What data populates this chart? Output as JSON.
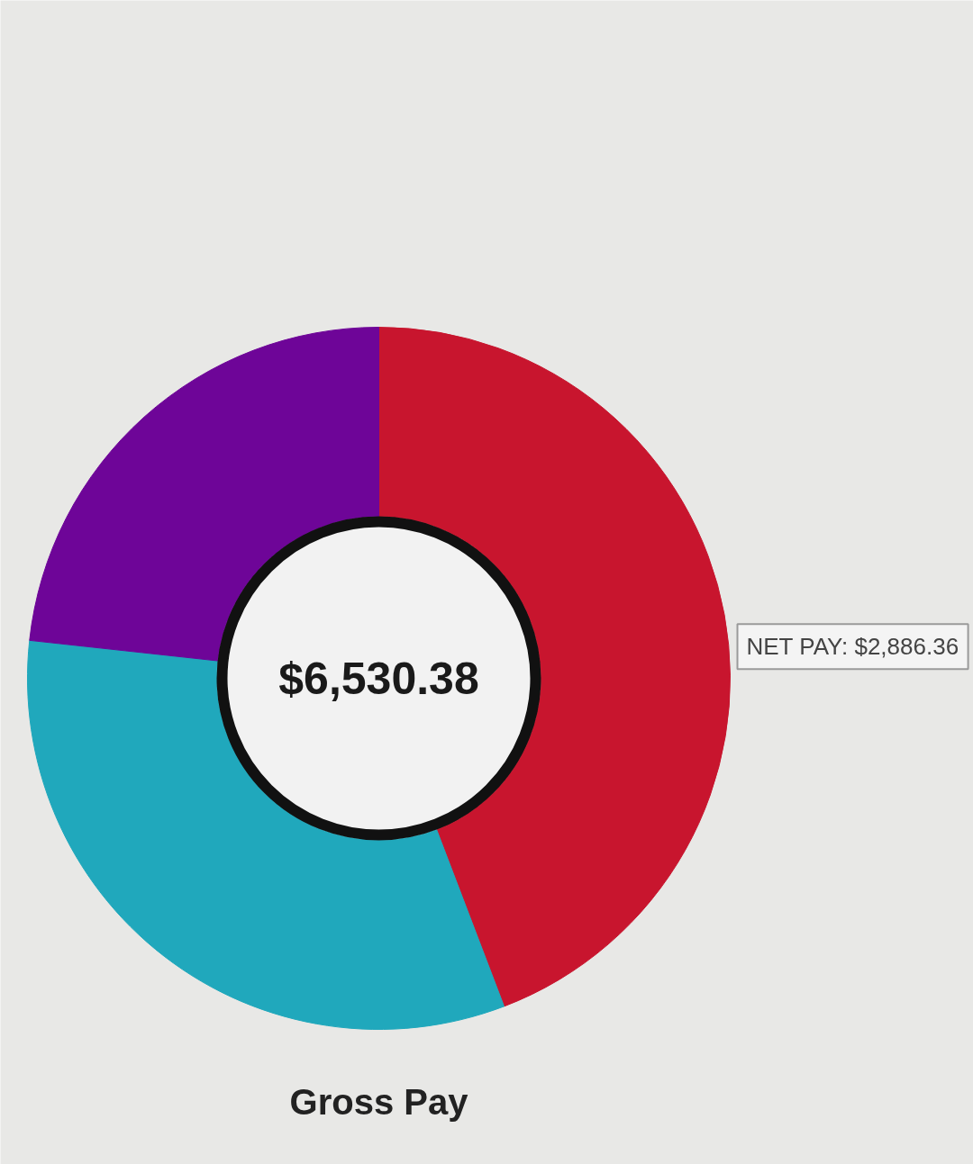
{
  "chart_data": {
    "type": "donut",
    "title": "Gross Pay",
    "categories": [
      "NET PAY",
      null,
      null
    ],
    "values": [
      2886.36,
      2124,
      1520
    ],
    "colors": [
      "#c8152e",
      "#20a8bc",
      "#6e0598"
    ],
    "value_labels": [
      "$2,886.36",
      null,
      null
    ],
    "annotations": [
      "$6,530.38"
    ]
  }
}
